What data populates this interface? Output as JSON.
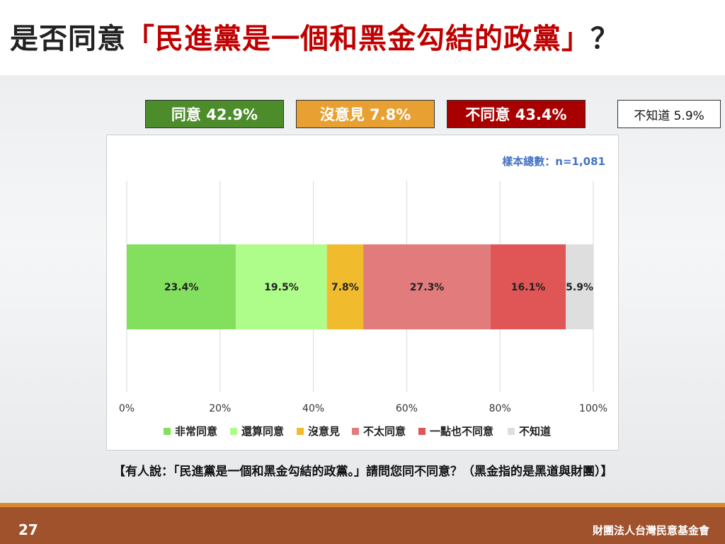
{
  "title": {
    "prefix": "是否同意",
    "quote": "「民進黨是一個和黑金勾結的政黨」",
    "suffix": "？"
  },
  "summary": [
    {
      "label": "同意 42.9%",
      "color": "#4c8c2b"
    },
    {
      "label": "沒意見 7.8%",
      "color": "#e8a033"
    },
    {
      "label": "不同意 43.4%",
      "color": "#a80000"
    },
    {
      "label": "不知道 5.9%",
      "color": "#ffffff"
    }
  ],
  "sample_size": "樣本總數：n=1,081",
  "question": "【有人說：「民進黨是一個和黑金勾結的政黨。」請問您同不同意？（黑金指的是黑道與財團）】",
  "page_number": "27",
  "organization": "財團法人台灣民意基金會",
  "chart_data": {
    "type": "bar",
    "orientation": "horizontal-stacked",
    "xlim": [
      0,
      100
    ],
    "ticks": [
      "0%",
      "20%",
      "40%",
      "60%",
      "80%",
      "100%"
    ],
    "grid": true,
    "legend": "bottom",
    "series": [
      {
        "name": "非常同意",
        "value": 23.4,
        "label": "23.4%",
        "color": "#82e05e"
      },
      {
        "name": "還算同意",
        "value": 19.5,
        "label": "19.5%",
        "color": "#aefc8a"
      },
      {
        "name": "沒意見",
        "value": 7.8,
        "label": "7.8%",
        "color": "#f0bc2e"
      },
      {
        "name": "不太同意",
        "value": 27.3,
        "label": "27.3%",
        "color": "#e27b7b"
      },
      {
        "name": "一點也不同意",
        "value": 16.1,
        "label": "16.1%",
        "color": "#e05555"
      },
      {
        "name": "不知道",
        "value": 5.9,
        "label": "5.9%",
        "color": "#dedede"
      }
    ]
  }
}
